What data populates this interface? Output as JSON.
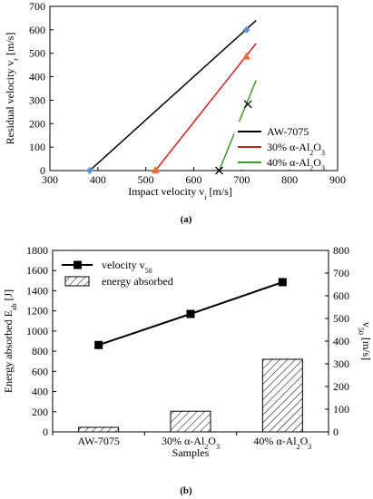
{
  "chart_data": [
    {
      "type": "scatter",
      "caption": "(a)",
      "xlabel": "Impact velocity v_i [m/s]",
      "ylabel": "Residual velocity v_r [m/s]",
      "xlim": [
        300,
        900
      ],
      "ylim": [
        0,
        700
      ],
      "xticks": [
        300,
        400,
        500,
        600,
        700,
        800,
        900
      ],
      "yticks": [
        0,
        100,
        200,
        300,
        400,
        500,
        600,
        700
      ],
      "grid": "none",
      "legend_placement": "bottom-right",
      "series": [
        {
          "name": "AW-7075",
          "color": "#000000",
          "marker": "diamond",
          "marker_color": "#5b8fd6",
          "line": [
            [
              383,
              0
            ],
            [
              730,
              640
            ]
          ],
          "points": [
            [
              383,
              0
            ],
            [
              710,
              600
            ]
          ]
        },
        {
          "name": "30% α-Al2O3",
          "color": "#d42020",
          "marker": "triangle",
          "marker_color": "#f07030",
          "line": [
            [
              520,
              0
            ],
            [
              730,
              542
            ]
          ],
          "points": [
            [
              520,
              0
            ],
            [
              710,
              485
            ]
          ]
        },
        {
          "name": "40% α-Al2O3",
          "color": "#3d9a2a",
          "marker": "x",
          "marker_color": "#000000",
          "line": [
            [
              653,
              0
            ],
            [
              730,
              385
            ]
          ],
          "points": [
            [
              653,
              0
            ],
            [
              713,
              283
            ]
          ]
        }
      ]
    },
    {
      "type": "bar",
      "caption": "(b)",
      "xlabel": "Samples",
      "ylabel": "Energy absorbed E_ab [J]",
      "y2label": "v_50 [m/s]",
      "categories": [
        "AW-7075",
        "30% α-Al2O3",
        "40% α-Al2O3"
      ],
      "ylim": [
        0,
        1800
      ],
      "yticks": [
        0,
        200,
        400,
        600,
        800,
        1000,
        1200,
        1400,
        1600,
        1800
      ],
      "y2lim": [
        0,
        800
      ],
      "y2ticks": [
        0,
        100,
        200,
        300,
        400,
        500,
        600,
        700,
        800
      ],
      "legend_placement": "top-left",
      "series": [
        {
          "name": "energy absorbed",
          "kind": "bar",
          "axis": "left",
          "hatch": true,
          "values": [
            45,
            205,
            720
          ]
        },
        {
          "name": "velocity v_50",
          "kind": "line",
          "axis": "right",
          "marker": "square",
          "values": [
            383,
            520,
            660
          ]
        }
      ]
    }
  ]
}
